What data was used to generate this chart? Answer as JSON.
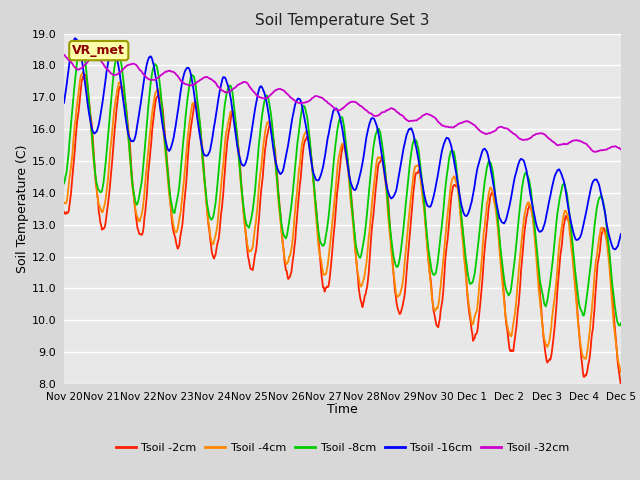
{
  "title": "Soil Temperature Set 3",
  "xlabel": "Time",
  "ylabel": "Soil Temperature (C)",
  "ylim": [
    8.0,
    19.0
  ],
  "yticks": [
    8.0,
    9.0,
    10.0,
    11.0,
    12.0,
    13.0,
    14.0,
    15.0,
    16.0,
    17.0,
    18.0,
    19.0
  ],
  "background_color": "#e0e0e0",
  "plot_background": "#e8e8e8",
  "grid_color": "#ffffff",
  "colors": {
    "2cm": "#ff2200",
    "4cm": "#ff8800",
    "8cm": "#00cc00",
    "16cm": "#0000ff",
    "32cm": "#cc00cc"
  },
  "legend_label": "VR_met",
  "x_tick_labels": [
    "Nov 20",
    "Nov 21",
    "Nov 22",
    "Nov 23",
    "Nov 24",
    "Nov 25",
    "Nov 26",
    "Nov 27",
    "Nov 28",
    "Nov 29",
    "Nov 30",
    "Dec 1",
    "Dec 2",
    "Dec 3",
    "Dec 4",
    "Dec 5"
  ],
  "legend_entries": [
    "Tsoil -2cm",
    "Tsoil -4cm",
    "Tsoil -8cm",
    "Tsoil -16cm",
    "Tsoil -32cm"
  ]
}
